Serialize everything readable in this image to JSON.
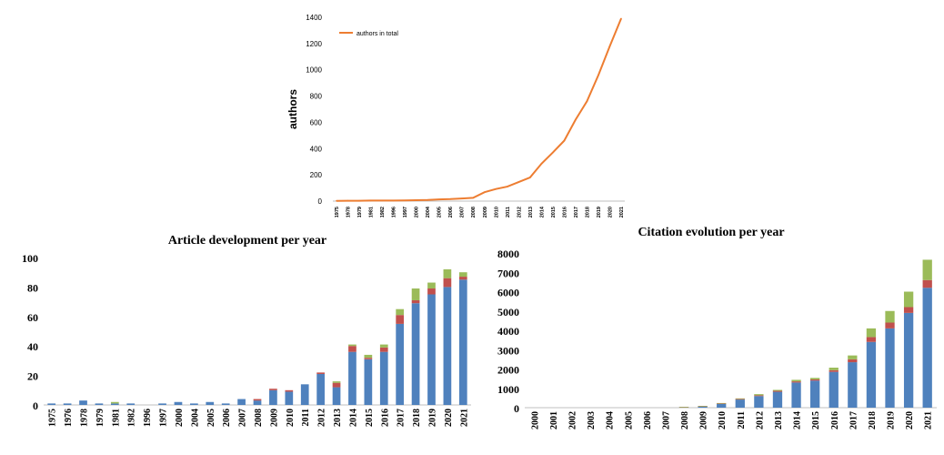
{
  "chart_data": [
    {
      "type": "line",
      "title": "",
      "xlabel": "",
      "ylabel": "authors",
      "ylim": [
        0,
        1400
      ],
      "yticks": [
        0,
        200,
        400,
        600,
        800,
        1000,
        1200,
        1400
      ],
      "legend": "top-left",
      "categories": [
        "1975",
        "1978",
        "1979",
        "1981",
        "1982",
        "1996",
        "1997",
        "2000",
        "2004",
        "2005",
        "2006",
        "2007",
        "2008",
        "2009",
        "2010",
        "2011",
        "2012",
        "2013",
        "2014",
        "2015",
        "2016",
        "2017",
        "2018",
        "2019",
        "2020",
        "2021"
      ],
      "series": [
        {
          "name": "authors in total",
          "color": "#ED7D31",
          "values": [
            2,
            3,
            3,
            4,
            4,
            4,
            5,
            7,
            8,
            13,
            15,
            20,
            25,
            68,
            92,
            110,
            145,
            180,
            285,
            370,
            460,
            620,
            760,
            960,
            1180,
            1390
          ]
        }
      ]
    },
    {
      "type": "bar",
      "stacked": true,
      "title": "Article development per year",
      "xlabel": "",
      "ylabel": "",
      "ylim": [
        0,
        100
      ],
      "yticks": [
        0,
        20,
        40,
        60,
        80,
        100
      ],
      "categories": [
        "1975",
        "1976",
        "1978",
        "1979",
        "1981",
        "1982",
        "1996",
        "1997",
        "2000",
        "2004",
        "2005",
        "2006",
        "2007",
        "2008",
        "2009",
        "2010",
        "2011",
        "2012",
        "2013",
        "2014",
        "2015",
        "2016",
        "2017",
        "2018",
        "2019",
        "2020",
        "2021"
      ],
      "series": [
        {
          "color": "#4F81BD",
          "values": [
            1,
            1,
            3,
            1,
            1,
            1,
            0,
            1,
            2,
            1,
            2,
            1,
            4,
            3,
            10,
            9,
            14,
            21,
            12,
            36,
            31,
            36,
            55,
            69,
            75,
            80,
            85
          ]
        },
        {
          "color": "#C0504D",
          "values": [
            0,
            0,
            0,
            0,
            0,
            0,
            0,
            0,
            0,
            0,
            0,
            0,
            0,
            1,
            1,
            1,
            0,
            1,
            3,
            4,
            1,
            3,
            6,
            2,
            4,
            6,
            2
          ]
        },
        {
          "color": "#9BBB59",
          "values": [
            0,
            0,
            0,
            0,
            1,
            0,
            0,
            0,
            0,
            0,
            0,
            0,
            0,
            0,
            0,
            0,
            0,
            0,
            1,
            1,
            2,
            2,
            4,
            8,
            4,
            6,
            3
          ]
        }
      ]
    },
    {
      "type": "bar",
      "stacked": true,
      "title": "Citation evolution per year",
      "xlabel": "",
      "ylabel": "",
      "ylim": [
        0,
        8000
      ],
      "yticks": [
        0,
        1000,
        2000,
        3000,
        4000,
        5000,
        6000,
        7000,
        8000
      ],
      "categories": [
        "2000",
        "2001",
        "2002",
        "2003",
        "2004",
        "2005",
        "2006",
        "2007",
        "2008",
        "2009",
        "2010",
        "2011",
        "2012",
        "2013",
        "2014",
        "2015",
        "2016",
        "2017",
        "2018",
        "2019",
        "2020",
        "2021"
      ],
      "series": [
        {
          "color": "#4F81BD",
          "values": [
            0,
            0,
            0,
            0,
            0,
            0,
            0,
            0,
            30,
            70,
            200,
            420,
            600,
            820,
            1300,
            1400,
            1850,
            2350,
            3400,
            4100,
            4900,
            6200
          ]
        },
        {
          "color": "#C0504D",
          "values": [
            0,
            0,
            0,
            0,
            0,
            0,
            0,
            0,
            5,
            10,
            20,
            30,
            40,
            50,
            60,
            60,
            90,
            150,
            250,
            300,
            300,
            400
          ]
        },
        {
          "color": "#9BBB59",
          "values": [
            0,
            0,
            0,
            0,
            0,
            0,
            0,
            0,
            5,
            10,
            20,
            30,
            60,
            50,
            80,
            80,
            130,
            200,
            450,
            600,
            800,
            1050
          ]
        }
      ]
    }
  ]
}
